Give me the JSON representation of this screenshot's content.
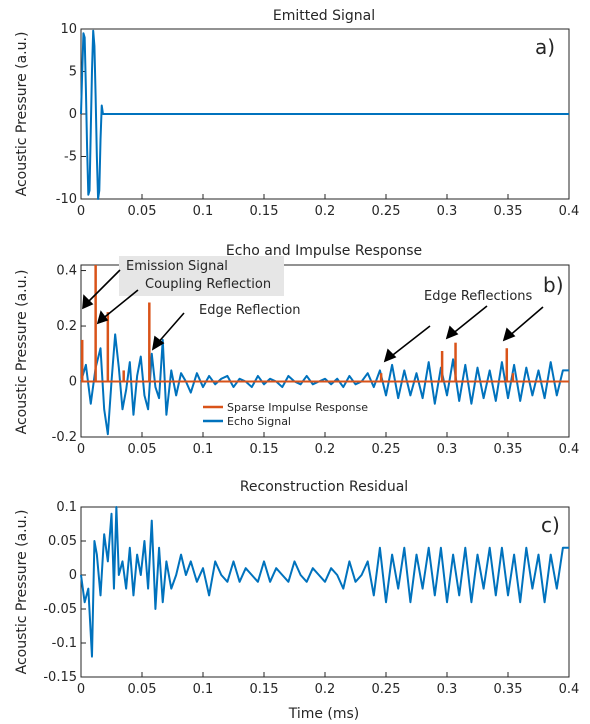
{
  "figure": {
    "xlabel": "Time (ms)"
  },
  "chart_data": [
    {
      "type": "line",
      "title": "Emitted Signal",
      "panel_label": "a)",
      "ylabel": "Acoustic Pressure (a.u.)",
      "xlabel": "",
      "xlim": [
        0,
        0.4
      ],
      "ylim": [
        -10,
        10
      ],
      "x_ticks": [
        "0",
        "0.05",
        "0.1",
        "0.15",
        "0.2",
        "0.25",
        "0.3",
        "0.35",
        "0.4"
      ],
      "y_ticks": [
        "10",
        "5",
        "0",
        "-5",
        "-10"
      ],
      "grid": false,
      "series": [
        {
          "color": "#0072BD",
          "x": [
            0,
            0.001,
            0.002,
            0.003,
            0.004,
            0.005,
            0.006,
            0.007,
            0.008,
            0.009,
            0.01,
            0.011,
            0.012,
            0.013,
            0.014,
            0.015,
            0.016,
            0.017,
            0.018,
            0.019,
            0.02,
            0.1,
            0.2,
            0.3,
            0.4
          ],
          "y": [
            0,
            5,
            9.5,
            9,
            3,
            -4,
            -9.5,
            -9,
            -2,
            5,
            9.8,
            8,
            2,
            -5,
            -10,
            -9,
            -3,
            1,
            0,
            0,
            0,
            0,
            0,
            0,
            0
          ]
        }
      ]
    },
    {
      "type": "line",
      "title": "Echo and Impulse Response",
      "panel_label": "b)",
      "ylabel": "Acoustic Pressure (a.u.)",
      "xlabel": "",
      "xlim": [
        0,
        0.4
      ],
      "ylim": [
        -0.2,
        0.42
      ],
      "x_ticks": [
        "0",
        "0.05",
        "0.1",
        "0.15",
        "0.2",
        "0.25",
        "0.3",
        "0.35",
        "0.4"
      ],
      "y_ticks": [
        "0.4",
        "0.2",
        "0",
        "-0.2"
      ],
      "grid": false,
      "legend": {
        "position": "bottom-left",
        "entries": [
          "Sparse Impulse Response",
          "Echo Signal"
        ]
      },
      "series": [
        {
          "name": "Sparse Impulse Response",
          "color": "#D95319",
          "type": "stem",
          "spikes": [
            {
              "x": 0.001,
              "y": 0.15
            },
            {
              "x": 0.012,
              "y": 0.42
            },
            {
              "x": 0.022,
              "y": 0.25
            },
            {
              "x": 0.035,
              "y": 0.04
            },
            {
              "x": 0.056,
              "y": 0.285
            },
            {
              "x": 0.246,
              "y": 0.03
            },
            {
              "x": 0.296,
              "y": 0.11
            },
            {
              "x": 0.307,
              "y": 0.14
            },
            {
              "x": 0.349,
              "y": 0.12
            },
            {
              "x": 0.354,
              "y": 0.03
            }
          ]
        },
        {
          "name": "Echo Signal",
          "color": "#0072BD",
          "x": [
            0,
            0.004,
            0.008,
            0.012,
            0.016,
            0.019,
            0.022,
            0.025,
            0.028,
            0.031,
            0.034,
            0.037,
            0.04,
            0.043,
            0.046,
            0.049,
            0.052,
            0.055,
            0.058,
            0.061,
            0.064,
            0.067,
            0.07,
            0.074,
            0.078,
            0.082,
            0.086,
            0.09,
            0.095,
            0.1,
            0.105,
            0.11,
            0.115,
            0.12,
            0.125,
            0.13,
            0.135,
            0.14,
            0.145,
            0.15,
            0.155,
            0.16,
            0.165,
            0.17,
            0.175,
            0.18,
            0.185,
            0.19,
            0.195,
            0.2,
            0.205,
            0.21,
            0.215,
            0.22,
            0.225,
            0.23,
            0.235,
            0.24,
            0.245,
            0.25,
            0.255,
            0.26,
            0.265,
            0.27,
            0.275,
            0.28,
            0.285,
            0.29,
            0.295,
            0.3,
            0.305,
            0.31,
            0.315,
            0.32,
            0.325,
            0.33,
            0.335,
            0.34,
            0.345,
            0.35,
            0.355,
            0.36,
            0.365,
            0.37,
            0.375,
            0.38,
            0.385,
            0.39,
            0.395,
            0.4
          ],
          "y": [
            0,
            0.06,
            -0.08,
            0.05,
            0.12,
            -0.1,
            -0.19,
            0.0,
            0.17,
            0.05,
            -0.1,
            -0.03,
            0.07,
            -0.12,
            0.02,
            0.09,
            -0.05,
            -0.1,
            0.1,
            -0.02,
            -0.06,
            0.15,
            -0.12,
            0.04,
            -0.05,
            0.03,
            0.0,
            -0.04,
            0.03,
            -0.02,
            0.02,
            -0.01,
            0.01,
            0.02,
            -0.02,
            0.01,
            0.0,
            -0.02,
            0.02,
            -0.01,
            0.01,
            0.0,
            -0.02,
            0.02,
            0.0,
            -0.01,
            0.02,
            -0.01,
            0.0,
            0.01,
            -0.01,
            0.01,
            -0.02,
            0.02,
            -0.01,
            0.0,
            0.03,
            -0.02,
            0.04,
            -0.05,
            0.06,
            -0.06,
            0.04,
            -0.05,
            0.03,
            -0.06,
            0.07,
            -0.08,
            0.05,
            -0.05,
            0.08,
            -0.07,
            0.06,
            -0.08,
            0.05,
            -0.06,
            0.04,
            -0.07,
            0.07,
            -0.06,
            0.06,
            -0.07,
            0.05,
            -0.05,
            0.04,
            -0.06,
            0.07,
            -0.05,
            0.04,
            0.04
          ]
        }
      ],
      "annotations": [
        "Emission Signal",
        "Coupling Reflection",
        "Edge Reflection",
        "Edge Reflections"
      ]
    },
    {
      "type": "line",
      "title": "Reconstruction Residual",
      "panel_label": "c)",
      "ylabel": "Acoustic Pressure (a.u.)",
      "xlabel": "Time (ms)",
      "xlim": [
        0,
        0.4
      ],
      "ylim": [
        -0.15,
        0.1
      ],
      "x_ticks": [
        "0",
        "0.05",
        "0.1",
        "0.15",
        "0.2",
        "0.25",
        "0.3",
        "0.35",
        "0.4"
      ],
      "y_ticks": [
        "0.1",
        "0.05",
        "0",
        "-0.05",
        "-0.1",
        "-0.15"
      ],
      "grid": false,
      "series": [
        {
          "color": "#0072BD",
          "x": [
            0,
            0.003,
            0.006,
            0.009,
            0.011,
            0.013,
            0.016,
            0.019,
            0.022,
            0.025,
            0.027,
            0.029,
            0.031,
            0.034,
            0.037,
            0.04,
            0.043,
            0.046,
            0.049,
            0.052,
            0.055,
            0.058,
            0.061,
            0.064,
            0.067,
            0.07,
            0.074,
            0.078,
            0.082,
            0.086,
            0.09,
            0.095,
            0.1,
            0.105,
            0.11,
            0.115,
            0.12,
            0.125,
            0.13,
            0.135,
            0.14,
            0.145,
            0.15,
            0.155,
            0.16,
            0.165,
            0.17,
            0.175,
            0.18,
            0.185,
            0.19,
            0.195,
            0.2,
            0.205,
            0.21,
            0.215,
            0.22,
            0.225,
            0.23,
            0.235,
            0.24,
            0.245,
            0.25,
            0.255,
            0.26,
            0.265,
            0.27,
            0.275,
            0.28,
            0.285,
            0.29,
            0.295,
            0.3,
            0.305,
            0.31,
            0.315,
            0.32,
            0.325,
            0.33,
            0.335,
            0.34,
            0.345,
            0.35,
            0.355,
            0.36,
            0.365,
            0.37,
            0.375,
            0.38,
            0.385,
            0.39,
            0.395,
            0.4
          ],
          "y": [
            0,
            -0.04,
            -0.02,
            -0.12,
            0.05,
            0.03,
            -0.03,
            0.06,
            0.02,
            0.09,
            -0.02,
            0.1,
            0.0,
            0.02,
            -0.02,
            0.04,
            -0.03,
            0.03,
            0.0,
            0.05,
            -0.02,
            0.08,
            -0.05,
            0.04,
            -0.04,
            0.02,
            -0.02,
            0.0,
            0.03,
            0.0,
            0.02,
            -0.01,
            0.01,
            -0.03,
            0.02,
            0.0,
            -0.01,
            0.02,
            -0.01,
            0.01,
            0.0,
            -0.01,
            0.02,
            -0.01,
            0.01,
            0.0,
            -0.01,
            0.02,
            0.0,
            -0.01,
            0.01,
            0.0,
            -0.01,
            0.01,
            0.0,
            -0.02,
            0.02,
            -0.01,
            0.0,
            0.02,
            -0.03,
            0.04,
            -0.04,
            0.03,
            -0.02,
            0.04,
            -0.04,
            0.03,
            -0.02,
            0.04,
            -0.03,
            0.04,
            -0.04,
            0.03,
            -0.03,
            0.04,
            -0.04,
            0.03,
            -0.02,
            0.04,
            -0.03,
            0.04,
            -0.03,
            0.03,
            -0.04,
            0.04,
            -0.02,
            0.03,
            -0.04,
            0.03,
            -0.02,
            0.04,
            0.04
          ]
        }
      ]
    }
  ]
}
